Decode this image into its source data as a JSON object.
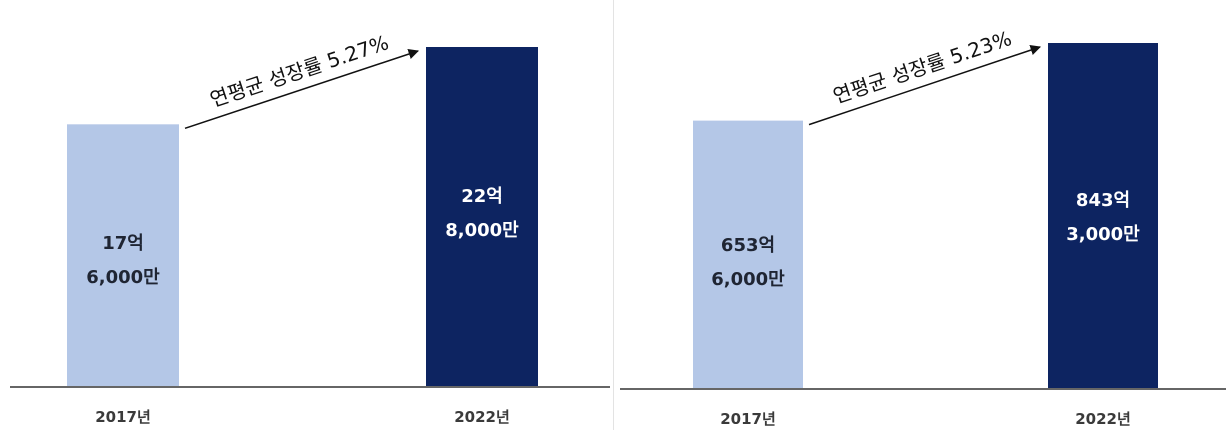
{
  "colors": {
    "bar_2017": "#b4c7e7",
    "bar_2022": "#0d2461",
    "label_on_light": "#1f2533",
    "label_on_dark": "#ffffff",
    "axis": "#333333"
  },
  "chart_data": [
    {
      "type": "bar",
      "categories": [
        "2017년",
        "2022년"
      ],
      "values": [
        176000,
        228000
      ],
      "value_labels": [
        [
          "17억",
          "6,000만"
        ],
        [
          "22억",
          "8,000만"
        ]
      ],
      "annotation": "연평균 성장률 5.27%",
      "ylim": [
        0,
        228000
      ]
    },
    {
      "type": "bar",
      "categories": [
        "2017년",
        "2022년"
      ],
      "values": [
        6536000,
        8433000
      ],
      "value_labels": [
        [
          "653억",
          "6,000만"
        ],
        [
          "843억",
          "3,000만"
        ]
      ],
      "annotation": "연평균 성장률 5.23%",
      "ylim": [
        0,
        8433000
      ]
    }
  ]
}
